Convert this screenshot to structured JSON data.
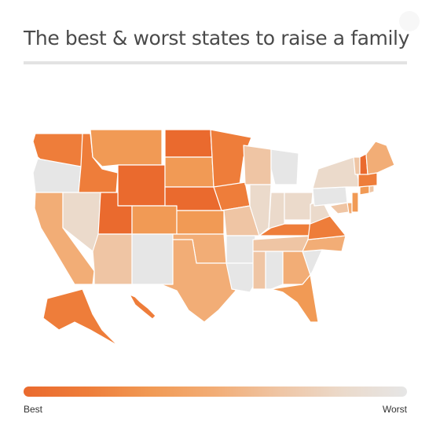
{
  "title": "The best & worst states to raise a family",
  "legend": {
    "best_label": "Best",
    "worst_label": "Worst"
  },
  "colors": {
    "best": "#ea6a2e",
    "worst": "#e6e6e6",
    "palette": [
      "#ea6a2e",
      "#ee7d3a",
      "#f19a55",
      "#f2ad76",
      "#efc5a4",
      "#ebdacb",
      "#e6e6e6"
    ]
  },
  "map_data": {
    "type": "choropleth",
    "scale_steps": 7,
    "states": {
      "WA": 1,
      "OR": 6,
      "CA": 3,
      "NV": 5,
      "ID": 1,
      "MT": 2,
      "WY": 0,
      "UT": 0,
      "AZ": 4,
      "CO": 2,
      "NM": 6,
      "ND": 0,
      "SD": 2,
      "NE": 0,
      "KS": 2,
      "OK": 3,
      "TX": 3,
      "MN": 1,
      "IA": 1,
      "MO": 4,
      "AR": 6,
      "LA": 6,
      "WI": 4,
      "IL": 5,
      "MI": 6,
      "IN": 5,
      "OH": 5,
      "KY": 1,
      "TN": 4,
      "MS": 4,
      "AL": 6,
      "GA": 3,
      "FL": 2,
      "SC": 6,
      "NC": 3,
      "VA": 1,
      "WV": 5,
      "PA": 6,
      "NY": 5,
      "MD": 4,
      "DE": 3,
      "NJ": 2,
      "CT": 2,
      "RI": 4,
      "MA": 1,
      "VT": 4,
      "NH": 0,
      "ME": 3,
      "AK": 1,
      "HI": 1
    }
  }
}
